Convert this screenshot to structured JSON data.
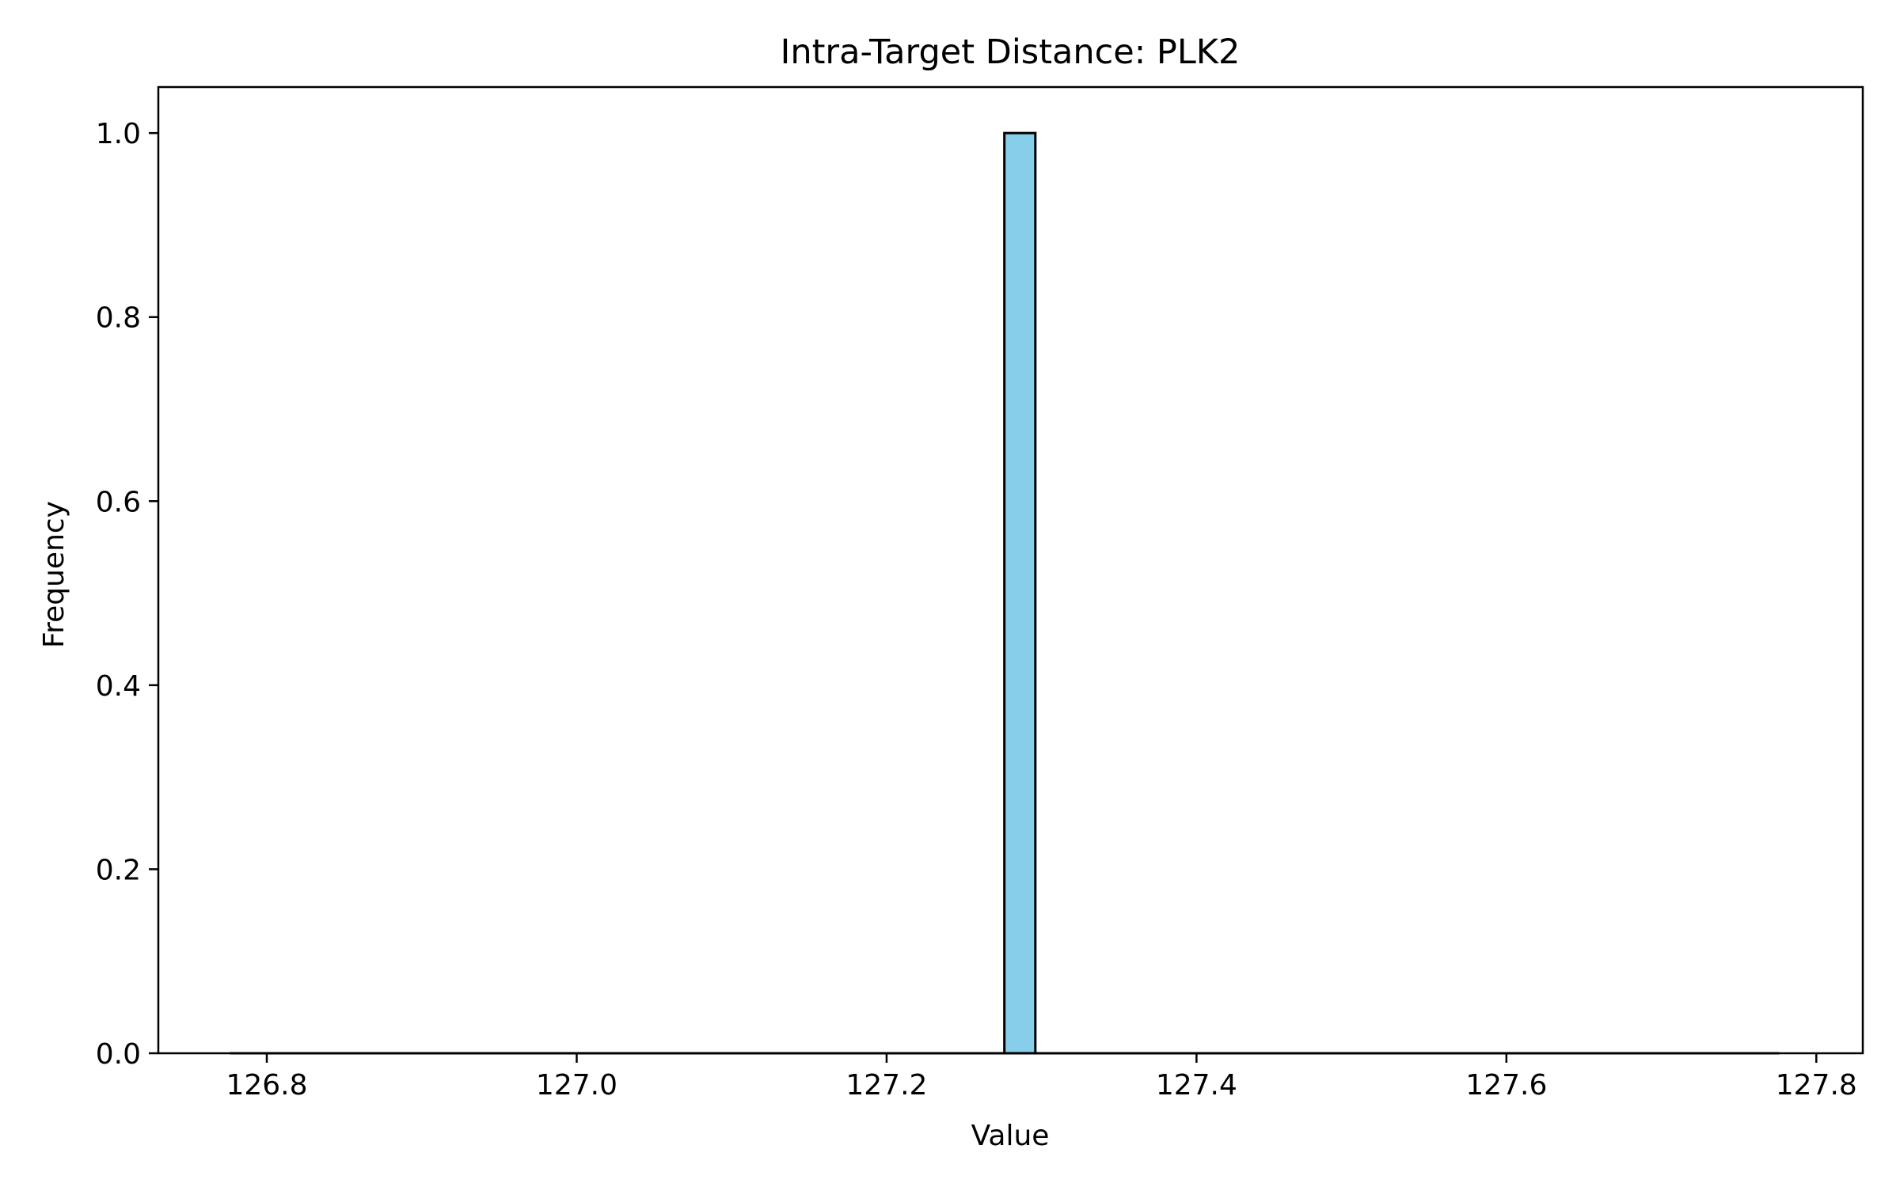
{
  "chart_data": {
    "type": "bar",
    "title": "Intra-Target Distance: PLK2",
    "xlabel": "Value",
    "ylabel": "Frequency",
    "xlim": [
      126.73,
      127.83
    ],
    "ylim": [
      0.0,
      1.05
    ],
    "xticks": [
      126.8,
      127.0,
      127.2,
      127.4,
      127.6,
      127.8
    ],
    "xtick_labels": [
      "126.8",
      "127.0",
      "127.2",
      "127.4",
      "127.6",
      "127.8"
    ],
    "yticks": [
      0.0,
      0.2,
      0.4,
      0.6,
      0.8,
      1.0
    ],
    "ytick_labels": [
      "0.0",
      "0.2",
      "0.4",
      "0.6",
      "0.8",
      "1.0"
    ],
    "bin_range": [
      126.776,
      127.776
    ],
    "bins": [
      {
        "x0": 127.276,
        "x1": 127.296,
        "count": 1
      }
    ],
    "grid": false,
    "colors": {
      "bar_fill": "#87ceeb",
      "bar_edge": "#000000",
      "axes": "#000000"
    }
  }
}
